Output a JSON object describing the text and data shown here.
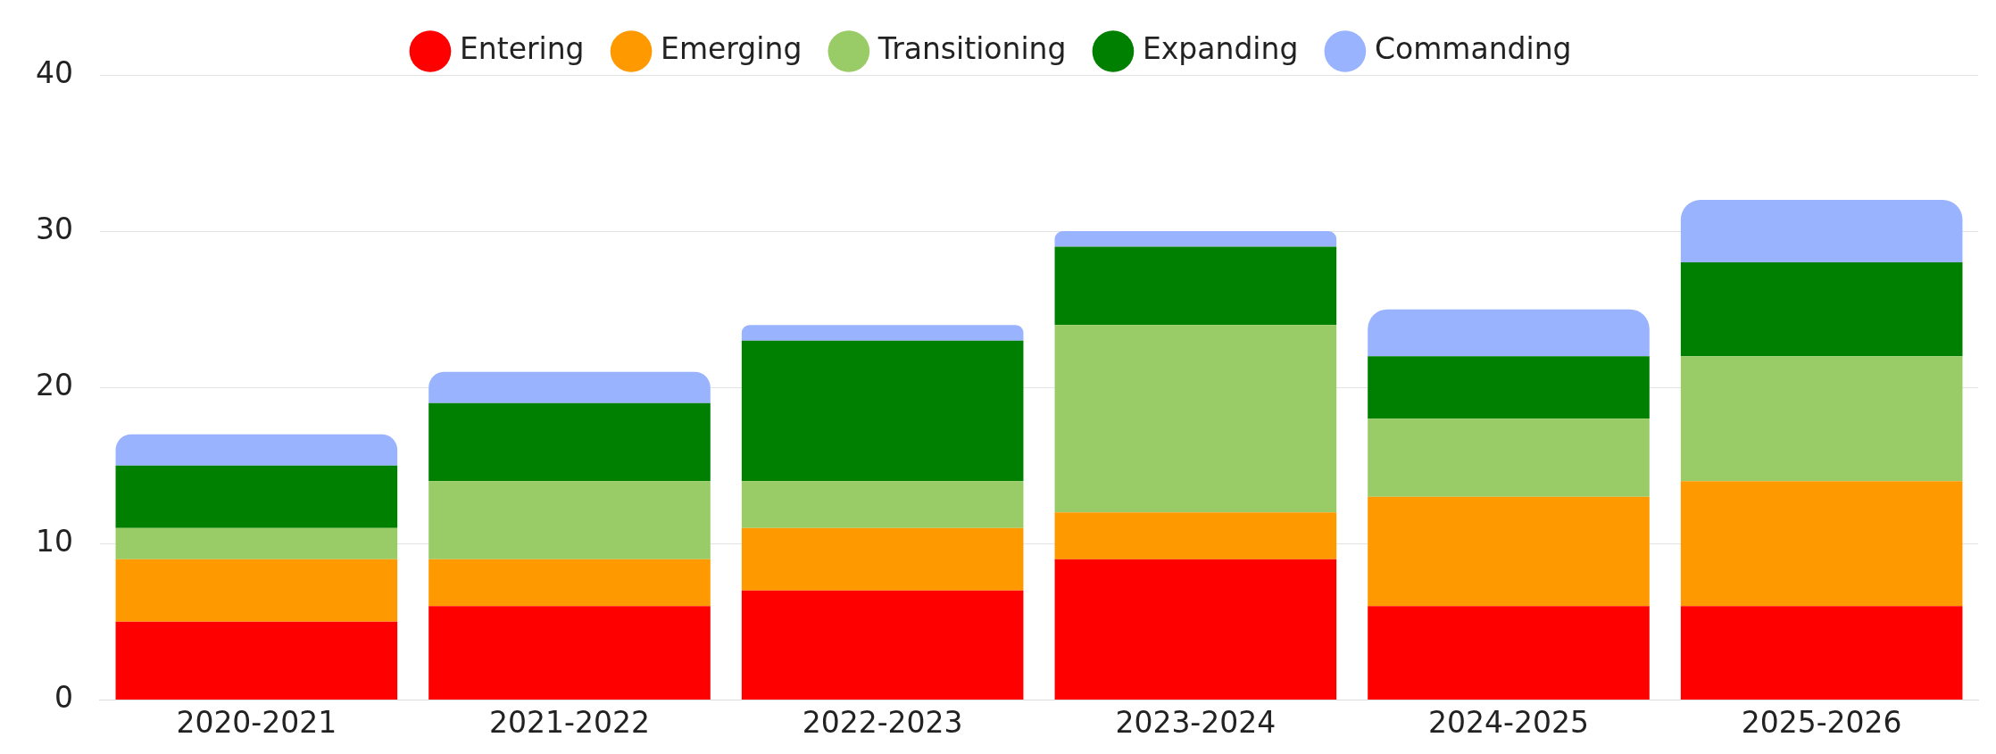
{
  "chart_data": {
    "type": "bar",
    "stacked": true,
    "categories": [
      "2020-2021",
      "2021-2022",
      "2022-2023",
      "2023-2024",
      "2024-2025",
      "2025-2026"
    ],
    "series": [
      {
        "name": "Entering",
        "color": "#ff0000",
        "values": [
          5,
          6,
          7,
          9,
          6,
          6
        ]
      },
      {
        "name": "Emerging",
        "color": "#ff9900",
        "values": [
          4,
          3,
          4,
          3,
          7,
          8
        ]
      },
      {
        "name": "Transitioning",
        "color": "#99cc66",
        "values": [
          2,
          5,
          3,
          12,
          5,
          8
        ]
      },
      {
        "name": "Expanding",
        "color": "#008000",
        "values": [
          4,
          5,
          9,
          5,
          4,
          6
        ]
      },
      {
        "name": "Commanding",
        "color": "#99b3ff",
        "values": [
          2,
          2,
          1,
          1,
          3,
          4
        ]
      }
    ],
    "ylim": [
      0,
      40
    ],
    "yticks": [
      0,
      10,
      20,
      30,
      40
    ],
    "grid": "y",
    "legend": "top"
  }
}
